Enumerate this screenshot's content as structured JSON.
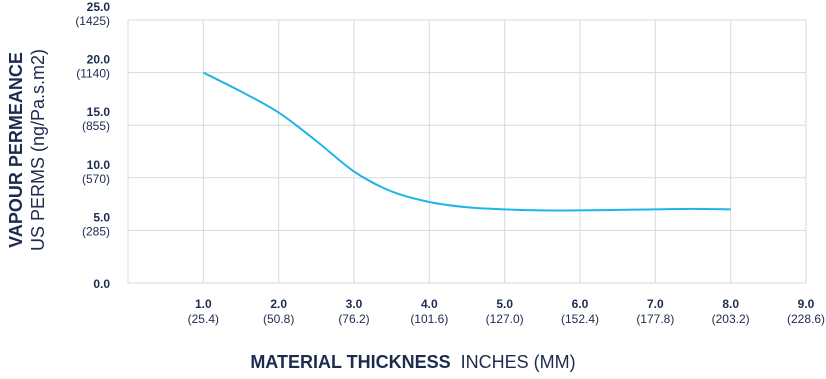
{
  "chart_data": {
    "type": "line",
    "xlabel_bold": "MATERIAL THICKNESS",
    "xlabel_regular": "INCHES (MM)",
    "ylabel_bold": "VAPOUR PERMEANCE",
    "ylabel_regular": "US PERMS (ng/Pa.s.m2)",
    "xlim": [
      0,
      9.0
    ],
    "ylim": [
      0,
      25.0
    ],
    "grid": true,
    "x_ticks": [
      {
        "value": 1.0,
        "label": "1.0",
        "sub": "(25.4)"
      },
      {
        "value": 2.0,
        "label": "2.0",
        "sub": "(50.8)"
      },
      {
        "value": 3.0,
        "label": "3.0",
        "sub": "(76.2)"
      },
      {
        "value": 4.0,
        "label": "4.0",
        "sub": "(101.6)"
      },
      {
        "value": 5.0,
        "label": "5.0",
        "sub": "(127.0)"
      },
      {
        "value": 6.0,
        "label": "6.0",
        "sub": "(152.4)"
      },
      {
        "value": 7.0,
        "label": "7.0",
        "sub": "(177.8)"
      },
      {
        "value": 8.0,
        "label": "8.0",
        "sub": "(203.2)"
      },
      {
        "value": 9.0,
        "label": "9.0",
        "sub": "(228.6)"
      }
    ],
    "y_ticks": [
      {
        "value": 0.0,
        "label": "0.0",
        "sub": ""
      },
      {
        "value": 5.0,
        "label": "5.0",
        "sub": "(285)"
      },
      {
        "value": 10.0,
        "label": "10.0",
        "sub": "(570)"
      },
      {
        "value": 15.0,
        "label": "15.0",
        "sub": "(855)"
      },
      {
        "value": 20.0,
        "label": "20.0",
        "sub": "(1140)"
      },
      {
        "value": 25.0,
        "label": "25.0",
        "sub": "(1425)"
      }
    ],
    "series": [
      {
        "color": "#1fb5e8",
        "x": [
          1.0,
          1.5,
          2.0,
          2.5,
          3.0,
          3.5,
          4.0,
          4.5,
          5.0,
          5.5,
          6.0,
          6.5,
          7.0,
          7.5,
          8.0
        ],
        "y": [
          20.0,
          18.2,
          16.2,
          13.5,
          10.6,
          8.7,
          7.7,
          7.2,
          7.0,
          6.9,
          6.9,
          6.95,
          7.0,
          7.05,
          7.0
        ]
      }
    ]
  }
}
